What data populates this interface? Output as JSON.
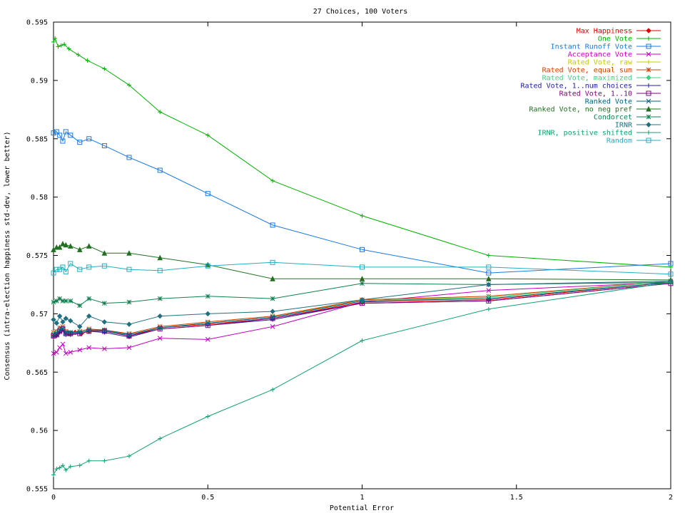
{
  "chart_data": {
    "type": "line",
    "title": "27 Choices, 100 Voters",
    "xlabel": "Potential Error",
    "ylabel": "Consensus (intra-election happiness std-dev, lower better)",
    "xlim": [
      0,
      2
    ],
    "ylim": [
      0.555,
      0.595
    ],
    "x_ticks": [
      "0",
      "0.5",
      "1",
      "1.5",
      "2"
    ],
    "y_ticks": [
      "0.555",
      "0.56",
      "0.565",
      "0.57",
      "0.575",
      "0.58",
      "0.585",
      "0.59",
      "0.595"
    ],
    "grid": false,
    "legend_position": "top-right",
    "series": [
      {
        "name": "Max Happiness",
        "color": "#e00000",
        "marker": "diamond",
        "points": [
          [
            0,
            0.5682
          ],
          [
            0.01,
            0.5682
          ],
          [
            0.02,
            0.5685
          ],
          [
            0.03,
            0.5688
          ],
          [
            0.04,
            0.5684
          ],
          [
            0.05,
            0.5683
          ],
          [
            0.07,
            0.5684
          ],
          [
            0.09,
            0.5683
          ],
          [
            0.115,
            0.5685
          ],
          [
            0.165,
            0.5686
          ],
          [
            0.245,
            0.5681
          ],
          [
            0.345,
            0.5688
          ],
          [
            0.5,
            0.5691
          ],
          [
            0.71,
            0.5696
          ],
          [
            1.0,
            0.571
          ],
          [
            1.41,
            0.5712
          ],
          [
            2.0,
            0.5727
          ]
        ]
      },
      {
        "name": "One Vote",
        "color": "#00b000",
        "marker": "plus",
        "points": [
          [
            0,
            0.5933
          ],
          [
            0.005,
            0.5936
          ],
          [
            0.015,
            0.5929
          ],
          [
            0.025,
            0.593
          ],
          [
            0.035,
            0.5931
          ],
          [
            0.05,
            0.5927
          ],
          [
            0.08,
            0.5922
          ],
          [
            0.11,
            0.5917
          ],
          [
            0.165,
            0.591
          ],
          [
            0.245,
            0.5896
          ],
          [
            0.345,
            0.5873
          ],
          [
            0.5,
            0.5853
          ],
          [
            0.71,
            0.5814
          ],
          [
            1.0,
            0.5784
          ],
          [
            1.41,
            0.575
          ],
          [
            2.0,
            0.574
          ]
        ]
      },
      {
        "name": "Instant Runoff Vote",
        "color": "#1878e0",
        "marker": "square",
        "points": [
          [
            0,
            0.5855
          ],
          [
            0.01,
            0.5856
          ],
          [
            0.02,
            0.5853
          ],
          [
            0.03,
            0.5848
          ],
          [
            0.04,
            0.5856
          ],
          [
            0.055,
            0.5853
          ],
          [
            0.085,
            0.5847
          ],
          [
            0.115,
            0.585
          ],
          [
            0.165,
            0.5844
          ],
          [
            0.245,
            0.5834
          ],
          [
            0.345,
            0.5823
          ],
          [
            0.5,
            0.5803
          ],
          [
            0.71,
            0.5776
          ],
          [
            1.0,
            0.5755
          ],
          [
            1.41,
            0.5735
          ],
          [
            2.0,
            0.5743
          ]
        ]
      },
      {
        "name": "Acceptance Vote",
        "color": "#c000c0",
        "marker": "x",
        "points": [
          [
            0,
            0.5666
          ],
          [
            0.01,
            0.5667
          ],
          [
            0.02,
            0.5671
          ],
          [
            0.03,
            0.5674
          ],
          [
            0.04,
            0.5666
          ],
          [
            0.055,
            0.5667
          ],
          [
            0.085,
            0.5669
          ],
          [
            0.115,
            0.5671
          ],
          [
            0.165,
            0.567
          ],
          [
            0.245,
            0.5671
          ],
          [
            0.345,
            0.5679
          ],
          [
            0.5,
            0.5678
          ],
          [
            0.71,
            0.5689
          ],
          [
            1.0,
            0.571
          ],
          [
            1.41,
            0.572
          ],
          [
            2.0,
            0.5727
          ]
        ]
      },
      {
        "name": "Rated Vote, raw",
        "color": "#c8c800",
        "marker": "plus",
        "points": [
          [
            0,
            0.5683
          ],
          [
            0.01,
            0.5684
          ],
          [
            0.02,
            0.5687
          ],
          [
            0.03,
            0.5688
          ],
          [
            0.04,
            0.5684
          ],
          [
            0.055,
            0.5683
          ],
          [
            0.085,
            0.5684
          ],
          [
            0.115,
            0.5686
          ],
          [
            0.165,
            0.5685
          ],
          [
            0.245,
            0.5682
          ],
          [
            0.345,
            0.5688
          ],
          [
            0.5,
            0.5692
          ],
          [
            0.71,
            0.5697
          ],
          [
            1.0,
            0.5712
          ],
          [
            1.41,
            0.5714
          ],
          [
            2.0,
            0.5728
          ]
        ]
      },
      {
        "name": "Rated Vote, equal sum",
        "color": "#d04000",
        "marker": "star",
        "points": [
          [
            0,
            0.5684
          ],
          [
            0.01,
            0.5685
          ],
          [
            0.02,
            0.5688
          ],
          [
            0.03,
            0.5689
          ],
          [
            0.04,
            0.5685
          ],
          [
            0.055,
            0.5684
          ],
          [
            0.085,
            0.5685
          ],
          [
            0.115,
            0.5687
          ],
          [
            0.165,
            0.5686
          ],
          [
            0.245,
            0.5683
          ],
          [
            0.345,
            0.5689
          ],
          [
            0.5,
            0.5693
          ],
          [
            0.71,
            0.5698
          ],
          [
            1.0,
            0.5712
          ],
          [
            1.41,
            0.5715
          ],
          [
            2.0,
            0.5728
          ]
        ]
      },
      {
        "name": "Rated Vote, maximized",
        "color": "#40d080",
        "marker": "diamond",
        "points": [
          [
            0,
            0.5683
          ],
          [
            0.01,
            0.5684
          ],
          [
            0.02,
            0.5686
          ],
          [
            0.03,
            0.5688
          ],
          [
            0.04,
            0.5684
          ],
          [
            0.055,
            0.5684
          ],
          [
            0.085,
            0.5684
          ],
          [
            0.115,
            0.5686
          ],
          [
            0.165,
            0.5685
          ],
          [
            0.245,
            0.5682
          ],
          [
            0.345,
            0.5688
          ],
          [
            0.5,
            0.5692
          ],
          [
            0.71,
            0.5697
          ],
          [
            1.0,
            0.5711
          ],
          [
            1.41,
            0.5714
          ],
          [
            2.0,
            0.5728
          ]
        ]
      },
      {
        "name": "Rated Vote, 1..num choices",
        "color": "#2020a0",
        "marker": "plus",
        "points": [
          [
            0,
            0.568
          ],
          [
            0.01,
            0.5681
          ],
          [
            0.02,
            0.5684
          ],
          [
            0.03,
            0.5686
          ],
          [
            0.04,
            0.5682
          ],
          [
            0.055,
            0.5682
          ],
          [
            0.085,
            0.5683
          ],
          [
            0.115,
            0.5685
          ],
          [
            0.165,
            0.5684
          ],
          [
            0.245,
            0.568
          ],
          [
            0.345,
            0.5687
          ],
          [
            0.5,
            0.569
          ],
          [
            0.71,
            0.5695
          ],
          [
            1.0,
            0.5709
          ],
          [
            1.41,
            0.5711
          ],
          [
            2.0,
            0.5726
          ]
        ]
      },
      {
        "name": "Rated Vote, 1..10",
        "color": "#800080",
        "marker": "square",
        "points": [
          [
            0,
            0.5681
          ],
          [
            0.01,
            0.5682
          ],
          [
            0.02,
            0.5685
          ],
          [
            0.03,
            0.5687
          ],
          [
            0.04,
            0.5683
          ],
          [
            0.055,
            0.5683
          ],
          [
            0.085,
            0.5683
          ],
          [
            0.115,
            0.5685
          ],
          [
            0.165,
            0.5685
          ],
          [
            0.245,
            0.5681
          ],
          [
            0.345,
            0.5687
          ],
          [
            0.5,
            0.569
          ],
          [
            0.71,
            0.5696
          ],
          [
            1.0,
            0.5709
          ],
          [
            1.41,
            0.5711
          ],
          [
            2.0,
            0.5726
          ]
        ]
      },
      {
        "name": "Ranked Vote",
        "color": "#006080",
        "marker": "x",
        "points": [
          [
            0,
            0.5682
          ],
          [
            0.01,
            0.5683
          ],
          [
            0.02,
            0.5686
          ],
          [
            0.03,
            0.5687
          ],
          [
            0.04,
            0.5684
          ],
          [
            0.055,
            0.5684
          ],
          [
            0.085,
            0.5684
          ],
          [
            0.115,
            0.5686
          ],
          [
            0.165,
            0.5686
          ],
          [
            0.245,
            0.5682
          ],
          [
            0.345,
            0.5688
          ],
          [
            0.5,
            0.5692
          ],
          [
            0.71,
            0.5697
          ],
          [
            1.0,
            0.5711
          ],
          [
            1.41,
            0.5713
          ],
          [
            2.0,
            0.5727
          ]
        ]
      },
      {
        "name": "Ranked Vote, no neg pref",
        "color": "#207020",
        "marker": "triangle",
        "points": [
          [
            0,
            0.5755
          ],
          [
            0.01,
            0.5757
          ],
          [
            0.02,
            0.5757
          ],
          [
            0.03,
            0.576
          ],
          [
            0.04,
            0.5759
          ],
          [
            0.055,
            0.5758
          ],
          [
            0.085,
            0.5755
          ],
          [
            0.115,
            0.5758
          ],
          [
            0.165,
            0.5752
          ],
          [
            0.245,
            0.5752
          ],
          [
            0.345,
            0.5748
          ],
          [
            0.5,
            0.5742
          ],
          [
            0.71,
            0.573
          ],
          [
            1.0,
            0.573
          ],
          [
            1.41,
            0.573
          ],
          [
            2.0,
            0.5729
          ]
        ]
      },
      {
        "name": "Condorcet",
        "color": "#108050",
        "marker": "star",
        "points": [
          [
            0,
            0.571
          ],
          [
            0.01,
            0.5711
          ],
          [
            0.02,
            0.5713
          ],
          [
            0.03,
            0.5711
          ],
          [
            0.04,
            0.5711
          ],
          [
            0.055,
            0.5711
          ],
          [
            0.085,
            0.5707
          ],
          [
            0.115,
            0.5713
          ],
          [
            0.165,
            0.5709
          ],
          [
            0.245,
            0.571
          ],
          [
            0.345,
            0.5713
          ],
          [
            0.5,
            0.5715
          ],
          [
            0.71,
            0.5713
          ],
          [
            1.0,
            0.5726
          ],
          [
            1.41,
            0.5725
          ],
          [
            2.0,
            0.5727
          ]
        ]
      },
      {
        "name": "IRNR",
        "color": "#207080",
        "marker": "diamond",
        "points": [
          [
            0,
            0.5695
          ],
          [
            0.01,
            0.5692
          ],
          [
            0.02,
            0.5698
          ],
          [
            0.03,
            0.5693
          ],
          [
            0.04,
            0.5696
          ],
          [
            0.055,
            0.5694
          ],
          [
            0.085,
            0.5689
          ],
          [
            0.115,
            0.5698
          ],
          [
            0.165,
            0.5693
          ],
          [
            0.245,
            0.5691
          ],
          [
            0.345,
            0.5698
          ],
          [
            0.5,
            0.57
          ],
          [
            0.71,
            0.5702
          ],
          [
            1.0,
            0.5712
          ],
          [
            1.41,
            0.5725
          ],
          [
            2.0,
            0.5728
          ]
        ]
      },
      {
        "name": "IRNR, positive shifted",
        "color": "#10a070",
        "marker": "plus",
        "points": [
          [
            0,
            0.5562
          ],
          [
            0.01,
            0.5567
          ],
          [
            0.02,
            0.5568
          ],
          [
            0.03,
            0.557
          ],
          [
            0.04,
            0.5566
          ],
          [
            0.055,
            0.5569
          ],
          [
            0.085,
            0.557
          ],
          [
            0.115,
            0.5574
          ],
          [
            0.165,
            0.5574
          ],
          [
            0.245,
            0.5578
          ],
          [
            0.345,
            0.5593
          ],
          [
            0.5,
            0.5612
          ],
          [
            0.71,
            0.5635
          ],
          [
            1.0,
            0.5677
          ],
          [
            1.41,
            0.5704
          ],
          [
            2.0,
            0.5727
          ]
        ]
      },
      {
        "name": "Random",
        "color": "#20b0c0",
        "marker": "square",
        "points": [
          [
            0,
            0.5735
          ],
          [
            0.01,
            0.5738
          ],
          [
            0.02,
            0.5738
          ],
          [
            0.03,
            0.574
          ],
          [
            0.04,
            0.5736
          ],
          [
            0.055,
            0.5743
          ],
          [
            0.085,
            0.5738
          ],
          [
            0.115,
            0.574
          ],
          [
            0.165,
            0.5741
          ],
          [
            0.245,
            0.5738
          ],
          [
            0.345,
            0.5737
          ],
          [
            0.5,
            0.5741
          ],
          [
            0.71,
            0.5744
          ],
          [
            1.0,
            0.574
          ],
          [
            1.41,
            0.574
          ],
          [
            2.0,
            0.5734
          ]
        ]
      }
    ]
  }
}
